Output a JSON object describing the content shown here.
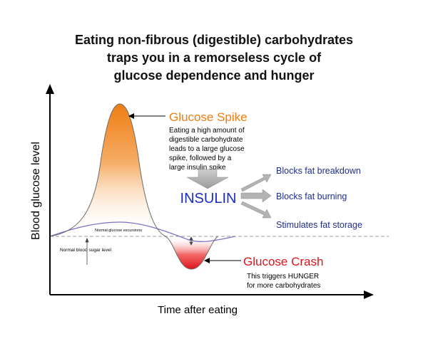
{
  "title": {
    "line1": "Eating non-fibrous (digestible) carbohydrates",
    "line2": "traps you in a remorseless cycle of",
    "line3": "glucose dependence and hunger"
  },
  "axes": {
    "ylabel": "Blood glucose level",
    "xlabel": "Time after eating"
  },
  "spike": {
    "title": "Glucose Spike",
    "desc": [
      "Eating a high amount of",
      "digestible carbohydrate",
      "leads to a large glucose",
      "spike, followed by a",
      "large insulin spike"
    ]
  },
  "insulin": {
    "label": "INSULIN"
  },
  "effects": [
    "Blocks fat breakdown",
    "Blocks fat burning",
    "Stimulates fat storage"
  ],
  "crash": {
    "title": "Glucose Crash",
    "desc": [
      "This triggers HUNGER",
      "for more carbohydrates"
    ]
  },
  "small_labels": {
    "normal_excursions": "Normal glucose excursions",
    "normal_level": "Normal blood sugar level"
  },
  "colors": {
    "spike": "#ef7d12",
    "crash": "#e0141c",
    "insulin": "#1c2bc8",
    "effects": "#1e2f8c",
    "normal_curve": "#7a72c8",
    "arrow_gray": "#a7a7a7"
  },
  "icons": [
    "axis-arrow-icon",
    "pointer-arrow-icon",
    "down-block-arrow-icon",
    "effect-arrow-icon"
  ]
}
